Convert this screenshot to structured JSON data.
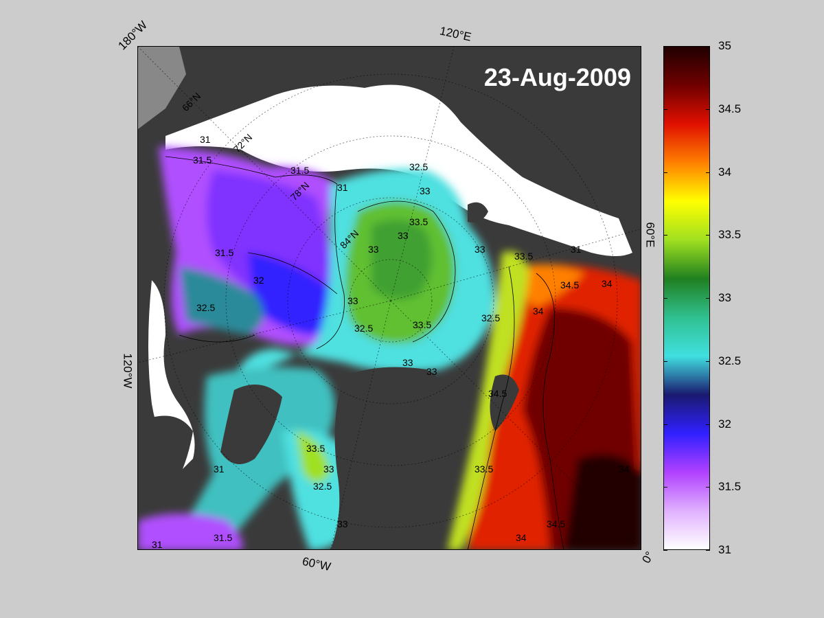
{
  "date": "23-Aug-2009",
  "edge_labels": {
    "top_left": "180°W",
    "top_mid": "120°E",
    "right_mid": "60°E",
    "left_mid": "120°W",
    "bottom_mid": "60°W",
    "bottom_right": "0°"
  },
  "lat_labels": [
    "66°N",
    "72°N",
    "78°N",
    "84°N"
  ],
  "contour_labels": [
    "31",
    "31.5",
    "32",
    "32.5",
    "33",
    "33.5",
    "34",
    "34.5"
  ],
  "colorbar": {
    "min": 31,
    "max": 35,
    "ticks": [
      "35",
      "34.5",
      "34",
      "33.5",
      "33",
      "32.5",
      "32",
      "31.5",
      "31"
    ],
    "colors": [
      "#ffffff",
      "#e0b0ff",
      "#b040ff",
      "#3020ff",
      "#1a1a70",
      "#40e0e0",
      "#30c090",
      "#208020",
      "#a0e020",
      "#ffff00",
      "#ff8000",
      "#e01000",
      "#700000",
      "#200000"
    ]
  },
  "ocean_colors": {
    "land": "#3a3a3a",
    "ice": "#ffffff",
    "greenland": "#888888"
  }
}
